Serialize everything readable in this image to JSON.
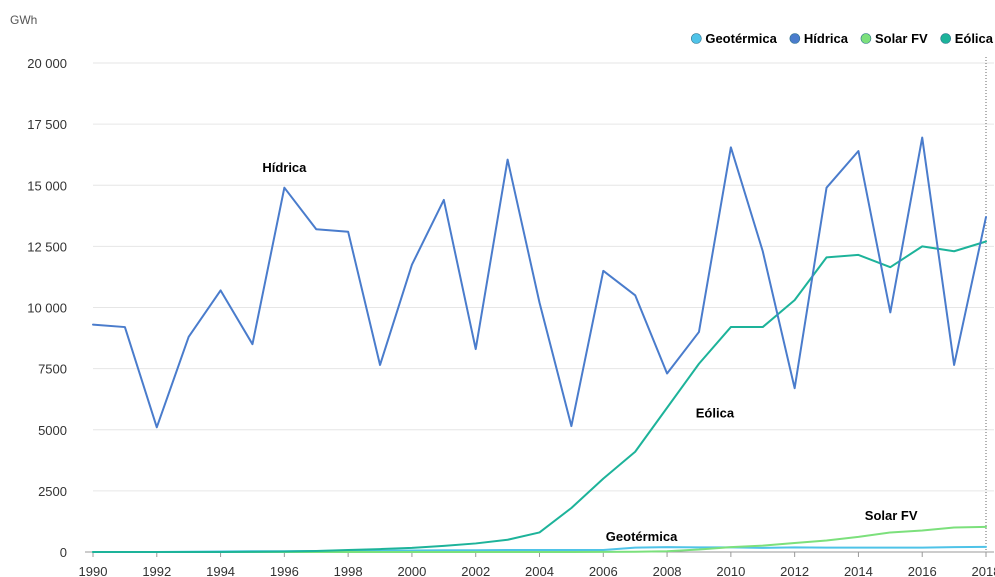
{
  "chart_data": {
    "type": "line",
    "unit_label": "GWh",
    "x": [
      1990,
      1991,
      1992,
      1993,
      1994,
      1995,
      1996,
      1997,
      1998,
      1999,
      2000,
      2001,
      2002,
      2003,
      2004,
      2005,
      2006,
      2007,
      2008,
      2009,
      2010,
      2011,
      2012,
      2013,
      2014,
      2015,
      2016,
      2017,
      2018
    ],
    "x_ticks": [
      "1990",
      "1992",
      "1994",
      "1996",
      "1998",
      "2000",
      "2002",
      "2004",
      "2006",
      "2008",
      "2010",
      "2012",
      "2014",
      "2016",
      "2018"
    ],
    "y_ticks": [
      "0",
      "2500",
      "5000",
      "7500",
      "10 000",
      "12 500",
      "15 000",
      "17 500",
      "20 000"
    ],
    "ylim": [
      0,
      20000
    ],
    "grid": true,
    "legend_position": "top-right",
    "series": [
      {
        "name": "Geotérmica",
        "color": "#4fc3e8",
        "label": "Geotérmica",
        "values": [
          0,
          0,
          0,
          10,
          20,
          30,
          30,
          40,
          50,
          50,
          60,
          70,
          70,
          80,
          80,
          80,
          80,
          180,
          200,
          190,
          190,
          170,
          190,
          180,
          180,
          180,
          180,
          200,
          210
        ]
      },
      {
        "name": "Hídrica",
        "color": "#4a7ccc",
        "label": "Hídrica",
        "values": [
          9300,
          9200,
          5100,
          8800,
          10700,
          8500,
          14900,
          13200,
          13100,
          7650,
          11750,
          14400,
          8300,
          16050,
          10200,
          5150,
          11500,
          10500,
          7300,
          9000,
          16550,
          12300,
          6700,
          14900,
          16400,
          9800,
          16950,
          7650,
          13700
        ]
      },
      {
        "name": "Solar FV",
        "color": "#7ce07c",
        "label": "Solar FV",
        "values": [
          0,
          0,
          0,
          0,
          0,
          0,
          0,
          0,
          0,
          0,
          0,
          0,
          0,
          0,
          0,
          0,
          5,
          10,
          30,
          100,
          200,
          260,
          370,
          470,
          620,
          800,
          880,
          1000,
          1030
        ]
      },
      {
        "name": "Eólica",
        "color": "#1db39a",
        "label": "Eólica",
        "values": [
          0,
          0,
          0,
          0,
          0,
          10,
          20,
          40,
          80,
          120,
          170,
          250,
          350,
          500,
          800,
          1800,
          3000,
          4100,
          5900,
          7700,
          9200,
          9200,
          10300,
          12050,
          12150,
          11650,
          12500,
          12300,
          12700
        ]
      }
    ]
  }
}
